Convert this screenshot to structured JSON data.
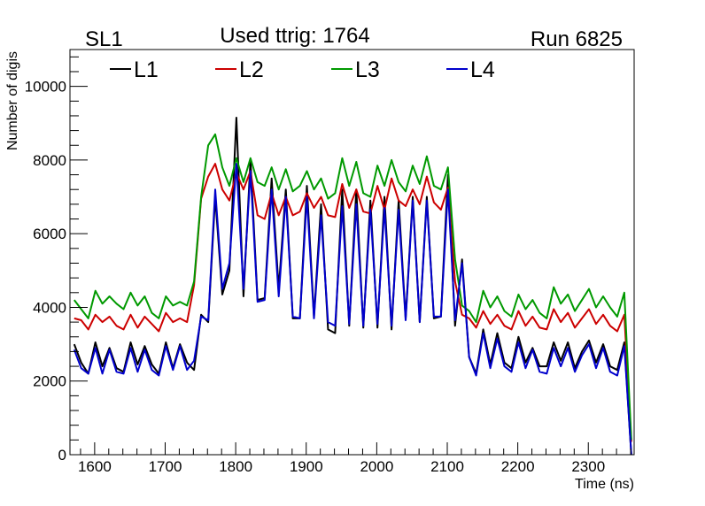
{
  "header": {
    "left": "SL1",
    "center": "Used ttrig: 1764",
    "right": "Run 6825"
  },
  "chart_data": {
    "type": "line",
    "title": "Used ttrig: 1764",
    "xlabel": "Time (ns)",
    "ylabel": "Number of digis",
    "xlim": [
      1565,
      2365
    ],
    "ylim": [
      0,
      11000
    ],
    "x_ticks": [
      1600,
      1700,
      1800,
      1900,
      2000,
      2100,
      2200,
      2300
    ],
    "x_tick_labels": [
      "1600",
      "1700",
      "1800",
      "1900",
      "2000",
      "2100",
      "2200",
      "2300"
    ],
    "y_ticks": [
      0,
      2000,
      4000,
      6000,
      8000,
      10000
    ],
    "y_tick_labels": [
      "0",
      "2000",
      "4000",
      "6000",
      "8000",
      "10000"
    ],
    "x": [
      1571,
      1581,
      1591,
      1601,
      1611,
      1621,
      1631,
      1641,
      1651,
      1661,
      1671,
      1681,
      1691,
      1701,
      1711,
      1721,
      1731,
      1741,
      1751,
      1761,
      1771,
      1781,
      1791,
      1801,
      1811,
      1821,
      1831,
      1841,
      1851,
      1861,
      1871,
      1881,
      1891,
      1901,
      1911,
      1921,
      1931,
      1941,
      1951,
      1961,
      1971,
      1981,
      1991,
      2001,
      2011,
      2021,
      2031,
      2041,
      2051,
      2061,
      2071,
      2081,
      2091,
      2101,
      2111,
      2121,
      2131,
      2141,
      2151,
      2161,
      2171,
      2181,
      2191,
      2201,
      2211,
      2221,
      2231,
      2241,
      2251,
      2261,
      2271,
      2281,
      2291,
      2301,
      2311,
      2321,
      2331,
      2341,
      2351,
      2361
    ],
    "series": [
      {
        "name": "L1",
        "color": "#000000",
        "values": [
          3000,
          2500,
          2200,
          3050,
          2400,
          2900,
          2350,
          2250,
          3050,
          2450,
          2950,
          2450,
          2200,
          3050,
          2350,
          3000,
          2500,
          2300,
          3800,
          3600,
          7000,
          4350,
          5000,
          9150,
          4300,
          8000,
          4200,
          4250,
          7500,
          4500,
          7200,
          3700,
          3700,
          7300,
          3750,
          6800,
          3400,
          3300,
          7200,
          3500,
          7200,
          3450,
          6900,
          3450,
          7000,
          3400,
          6900,
          3700,
          7000,
          3600,
          7000,
          3700,
          3750,
          7600,
          3500,
          5300,
          2650,
          2200,
          3400,
          2450,
          3300,
          2500,
          2350,
          3200,
          2500,
          2900,
          2400,
          2400,
          3050,
          2550,
          3050,
          2350,
          2800,
          3100,
          2500,
          3000,
          2400,
          2300,
          3050,
          0
        ]
      },
      {
        "name": "L2",
        "color": "#cc0000",
        "values": [
          3700,
          3650,
          3400,
          3800,
          3600,
          3750,
          3500,
          3400,
          3800,
          3450,
          3750,
          3550,
          3350,
          3850,
          3600,
          3700,
          3600,
          4600,
          6950,
          7550,
          7900,
          7200,
          6900,
          7650,
          7200,
          7700,
          6500,
          6400,
          7100,
          6500,
          7000,
          6500,
          6600,
          7100,
          6700,
          7000,
          6500,
          6450,
          7350,
          6700,
          7200,
          6600,
          6550,
          7300,
          6650,
          7500,
          6900,
          6750,
          7200,
          6800,
          7550,
          6850,
          6650,
          7250,
          4700,
          3800,
          3700,
          3450,
          3900,
          3550,
          3800,
          3500,
          3400,
          3900,
          3500,
          3750,
          3450,
          3400,
          3950,
          3600,
          3850,
          3450,
          3700,
          3950,
          3550,
          3800,
          3500,
          3350,
          3800,
          350
        ]
      },
      {
        "name": "L3",
        "color": "#009900",
        "values": [
          4200,
          3950,
          3700,
          4450,
          4100,
          4300,
          4100,
          3950,
          4400,
          4050,
          4300,
          3850,
          3700,
          4300,
          4050,
          4150,
          4050,
          4700,
          7000,
          8400,
          8700,
          7800,
          7300,
          8050,
          7400,
          8050,
          7400,
          7300,
          7800,
          7200,
          7750,
          7150,
          7300,
          7700,
          7200,
          7500,
          6950,
          7100,
          8050,
          7300,
          7950,
          7100,
          7000,
          7850,
          7300,
          8000,
          7400,
          7150,
          7850,
          7350,
          8100,
          7300,
          7200,
          7800,
          5300,
          4050,
          3900,
          3600,
          4450,
          4000,
          4300,
          3900,
          3750,
          4350,
          3950,
          4200,
          3850,
          3700,
          4550,
          4100,
          4350,
          3900,
          4200,
          4500,
          4000,
          4300,
          4000,
          3750,
          4400,
          400
        ]
      },
      {
        "name": "L4",
        "color": "#0000cc",
        "values": [
          2850,
          2350,
          2200,
          2900,
          2200,
          2850,
          2250,
          2200,
          2900,
          2250,
          2850,
          2300,
          2150,
          2950,
          2300,
          2950,
          2300,
          2550,
          3750,
          3650,
          7200,
          4500,
          5200,
          7900,
          4500,
          7700,
          4150,
          4200,
          7200,
          4300,
          7000,
          3750,
          3700,
          7000,
          3700,
          6500,
          3600,
          3500,
          6750,
          3550,
          6800,
          3500,
          6650,
          3550,
          6700,
          3500,
          6650,
          3650,
          6900,
          3600,
          6900,
          3750,
          3750,
          7200,
          3650,
          5200,
          2650,
          2150,
          3300,
          2350,
          3150,
          2400,
          2250,
          3050,
          2350,
          2850,
          2250,
          2200,
          2900,
          2400,
          2900,
          2250,
          2700,
          3000,
          2350,
          2900,
          2250,
          2150,
          2950,
          0
        ]
      }
    ],
    "legend_placement": "top",
    "grid": false
  }
}
